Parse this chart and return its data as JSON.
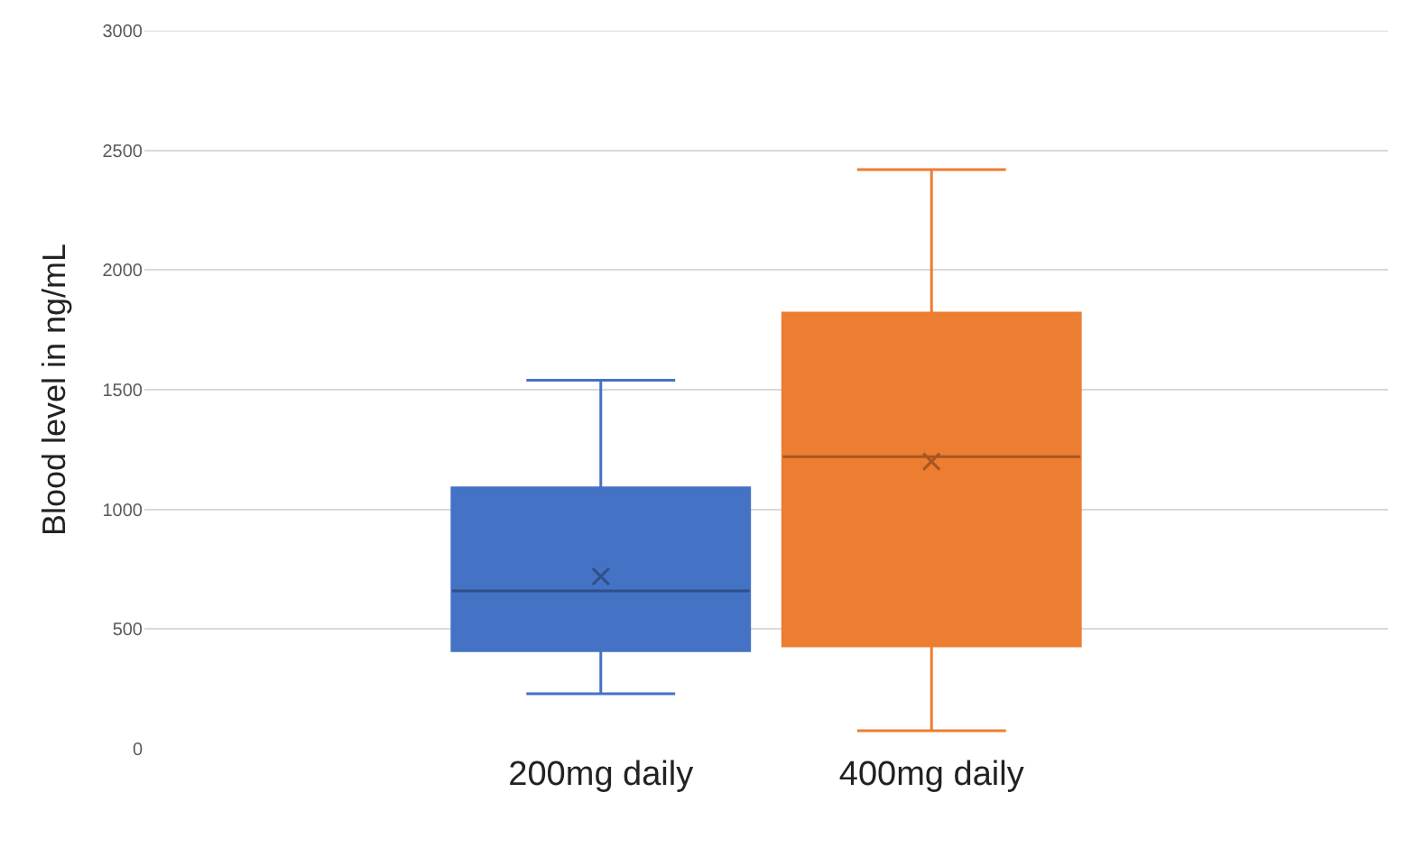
{
  "chart_data": {
    "type": "box",
    "ylabel": "Blood level in ng/mL",
    "categories": [
      "200mg daily",
      "400mg daily"
    ],
    "colors": [
      "#4472c4",
      "#ed7d31"
    ],
    "boxes": [
      {
        "low": 230,
        "q1": 410,
        "median": 660,
        "q3": 1090,
        "high": 1540,
        "mean": 720
      },
      {
        "low": 75,
        "q1": 430,
        "median": 1220,
        "q3": 1820,
        "high": 2420,
        "mean": 1200
      }
    ],
    "ylim": [
      0,
      3000
    ],
    "yticks": [
      0,
      500,
      1000,
      1500,
      2000,
      2500,
      3000
    ],
    "grid": "y",
    "legend": false
  }
}
